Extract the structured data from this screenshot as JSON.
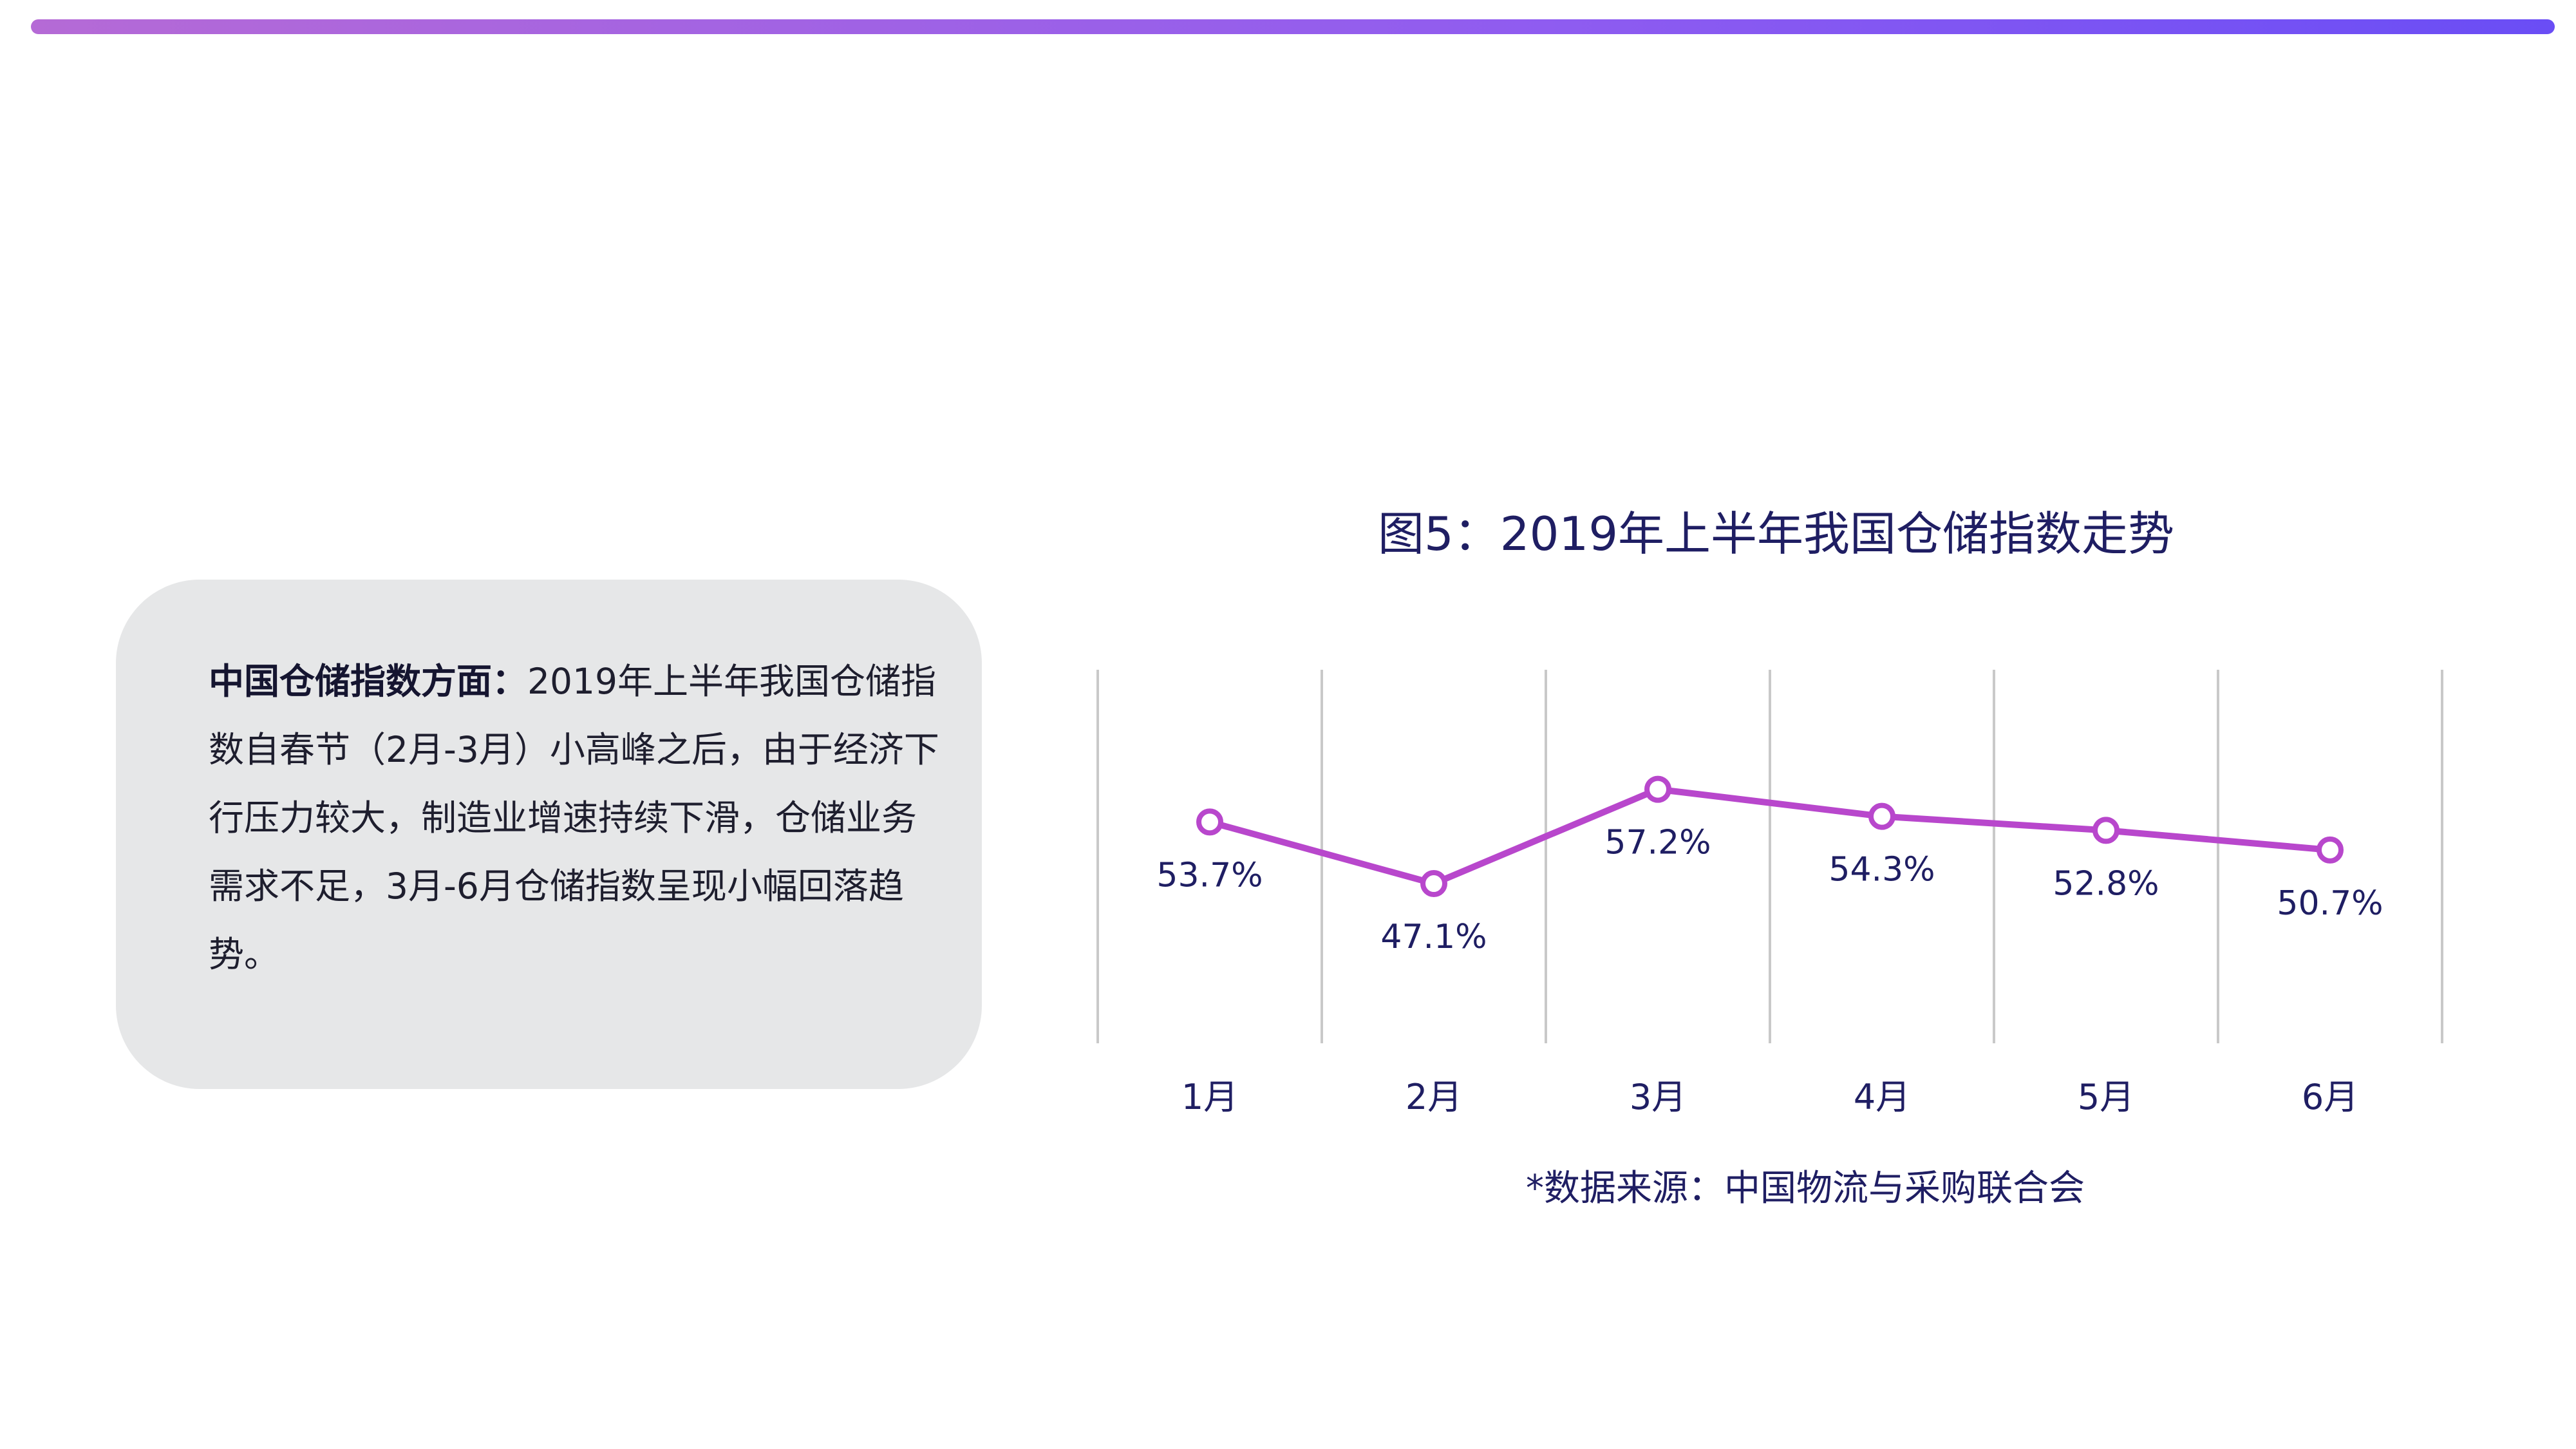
{
  "header": {
    "accent_gradient": [
      "#b56ad6",
      "#8f5cf0",
      "#6a4df5"
    ]
  },
  "textbox": {
    "bold_label": "中国仓储指数方面：",
    "body": "2019年上半年我国仓储指数自春节（2月-3月）小高峰之后，由于经济下行压力较大，制造业增速持续下滑，仓储业务需求不足，3月-6月仓储指数呈现小幅回落趋势。",
    "background": "#e6e7e8"
  },
  "chart_data": {
    "type": "line",
    "title": "图5：2019年上半年我国仓储指数走势",
    "categories": [
      "1月",
      "2月",
      "3月",
      "4月",
      "5月",
      "6月"
    ],
    "values": [
      53.7,
      47.1,
      57.2,
      54.3,
      52.8,
      50.7
    ],
    "data_labels": [
      "53.7%",
      "47.1%",
      "57.2%",
      "54.3%",
      "52.8%",
      "50.7%"
    ],
    "unit": "%",
    "ylim": [
      30,
      70
    ],
    "grid": "vertical",
    "line_color": "#b847cc",
    "text_color": "#1f1e63",
    "grid_color": "#c9c9c9"
  },
  "source_note": "*数据来源：中国物流与采购联合会"
}
